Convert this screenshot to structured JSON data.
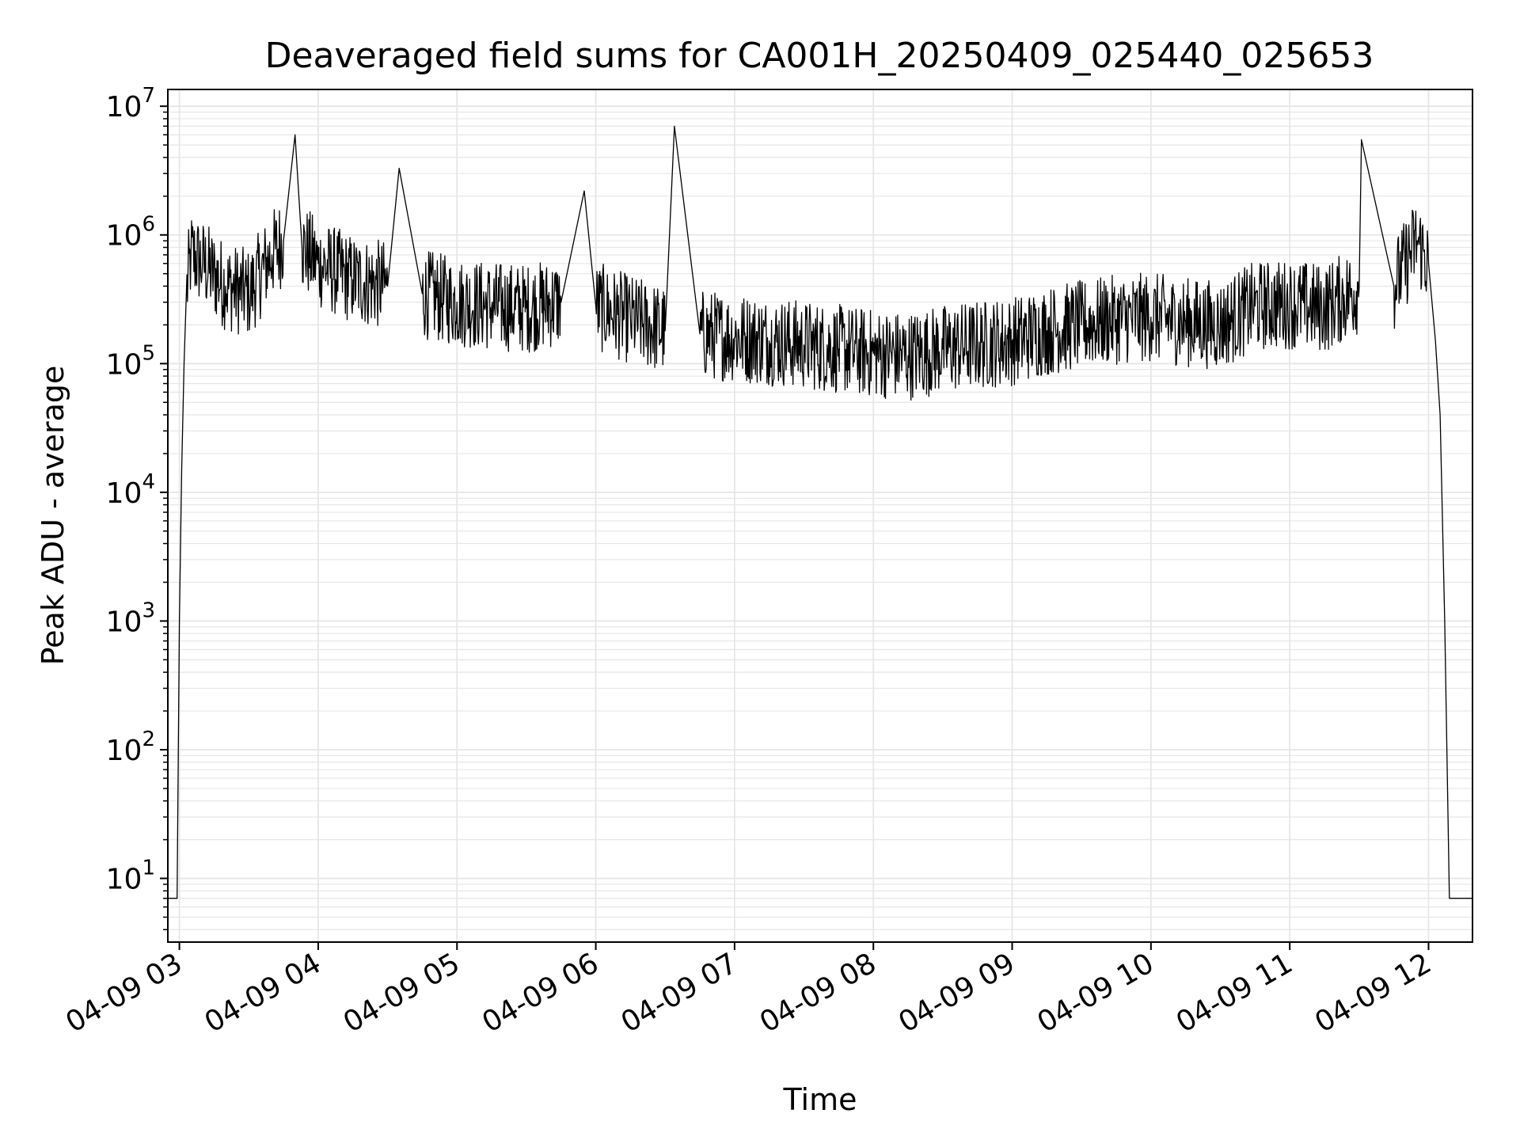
{
  "chart_data": {
    "type": "line",
    "title": "Deaveraged field sums for CA001H_20250409_025440_025653",
    "xlabel": "Time",
    "ylabel": "Peak ADU - average",
    "yscale": "log",
    "ylim": [
      3.2,
      13500000
    ],
    "xlim": [
      "04-09 02:55",
      "04-09 12:19"
    ],
    "grid": true,
    "x_ticks": [
      "04-09 03",
      "04-09 04",
      "04-09 05",
      "04-09 06",
      "04-09 07",
      "04-09 08",
      "04-09 09",
      "04-09 10",
      "04-09 11",
      "04-09 12"
    ],
    "y_ticks": [
      {
        "base": "10",
        "exp": "1",
        "value": 10
      },
      {
        "base": "10",
        "exp": "2",
        "value": 100
      },
      {
        "base": "10",
        "exp": "3",
        "value": 1000
      },
      {
        "base": "10",
        "exp": "4",
        "value": 10000
      },
      {
        "base": "10",
        "exp": "5",
        "value": 100000
      },
      {
        "base": "10",
        "exp": "6",
        "value": 1000000
      },
      {
        "base": "10",
        "exp": "7",
        "value": 10000000
      }
    ],
    "line_color": "#000000",
    "grid_color": "#e6e6e6",
    "series": [
      {
        "x": [
          "04-09 02:55",
          "04-09 02:59",
          "04-09 03:00",
          "04-09 03:01",
          "04-09 03:02",
          "04-09 03:03",
          "04-09 03:05",
          "04-09 03:10",
          "04-09 03:20",
          "04-09 03:30",
          "04-09 03:40",
          "04-09 03:45",
          "04-09 03:50",
          "04-09 03:53",
          "04-09 04:00",
          "04-09 04:15",
          "04-09 04:30",
          "04-09 04:35",
          "04-09 04:45",
          "04-09 05:00",
          "04-09 05:15",
          "04-09 05:30",
          "04-09 05:45",
          "04-09 05:55",
          "04-09 06:00",
          "04-09 06:15",
          "04-09 06:30",
          "04-09 06:34",
          "04-09 06:45",
          "04-09 07:00",
          "04-09 07:15",
          "04-09 07:30",
          "04-09 07:45",
          "04-09 08:00",
          "04-09 08:15",
          "04-09 08:30",
          "04-09 08:45",
          "04-09 09:00",
          "04-09 09:15",
          "04-09 09:30",
          "04-09 09:45",
          "04-09 10:00",
          "04-09 10:15",
          "04-09 10:30",
          "04-09 10:45",
          "04-09 11:00",
          "04-09 11:15",
          "04-09 11:30",
          "04-09 11:31",
          "04-09 11:45",
          "04-09 11:55",
          "04-09 12:00",
          "04-09 12:03",
          "04-09 12:05",
          "04-09 12:07",
          "04-09 12:09",
          "04-09 12:10",
          "04-09 12:19"
        ],
        "values": [
          7,
          7,
          1000,
          15000,
          100000,
          350000,
          700000,
          600000,
          400000,
          350000,
          700000,
          900000,
          6000000,
          800000,
          600000,
          450000,
          400000,
          3300000,
          350000,
          300000,
          280000,
          270000,
          300000,
          2200000,
          280000,
          220000,
          180000,
          7000000,
          170000,
          160000,
          150000,
          140000,
          130000,
          120000,
          115000,
          130000,
          140000,
          150000,
          180000,
          200000,
          220000,
          230000,
          210000,
          200000,
          280000,
          290000,
          270000,
          380000,
          5500000,
          400000,
          900000,
          600000,
          150000,
          40000,
          1000,
          7,
          7,
          7
        ]
      }
    ]
  }
}
